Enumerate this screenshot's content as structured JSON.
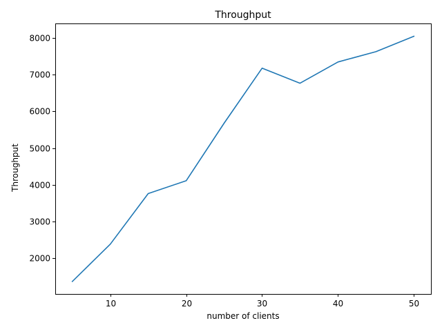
{
  "chart_data": {
    "type": "line",
    "title": "Throughput",
    "xlabel": "number of clients",
    "ylabel": "Throughput",
    "xlim": [
      2.75,
      52.25
    ],
    "ylim": [
      1020,
      8400
    ],
    "xticks": [
      10,
      20,
      30,
      40,
      50
    ],
    "yticks": [
      2000,
      3000,
      4000,
      5000,
      6000,
      7000,
      8000
    ],
    "grid": false,
    "series": [
      {
        "color": "#1f77b4",
        "x": [
          5,
          10,
          15,
          20,
          25,
          30,
          35,
          40,
          45,
          50
        ],
        "y": [
          1360,
          2380,
          3760,
          4110,
          5680,
          7180,
          6770,
          7350,
          7630,
          8050
        ]
      }
    ]
  }
}
